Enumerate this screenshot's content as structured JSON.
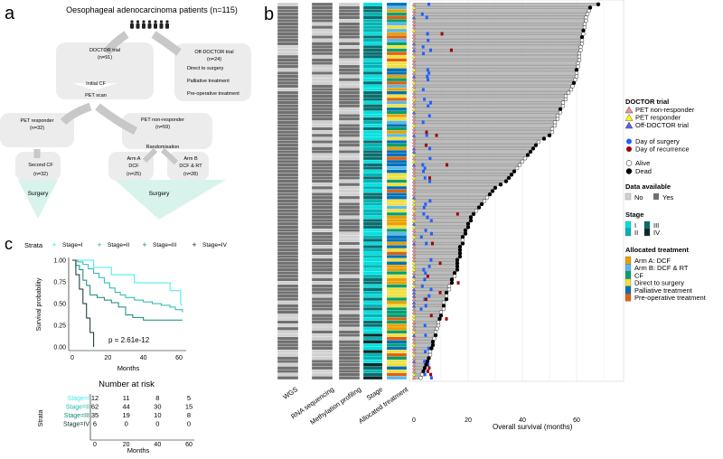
{
  "panel_labels": {
    "a": "a",
    "b": "b",
    "c": "c"
  },
  "flow": {
    "title": "Oesophageal adenocarcinoma patients (n=115)",
    "doctor": {
      "title": "DOCTOR trial",
      "n": "(n=91)",
      "step1": "Initial CF",
      "step2": "PET scan"
    },
    "off_doctor": {
      "title": "Off-DOCTOR trial",
      "n": "(n=24)",
      "items": [
        "Direct to surgery",
        "Palliative treatment",
        "Pre-operative treatment"
      ]
    },
    "pet_responder": {
      "title": "PET responder",
      "n": "(n=32)"
    },
    "pet_nonresponder": {
      "title": "PET non-responder",
      "n": "(n=59)",
      "sub": "Randomisation"
    },
    "second_cf": {
      "title": "Second CF",
      "n": "(n=32)"
    },
    "arm_a": {
      "title": "Arm A",
      "sub": "DCF",
      "n": "(n=25)"
    },
    "arm_b": {
      "title": "Arm B",
      "sub": "DCF & RT",
      "n": "(n=28)"
    },
    "surgery": "Surgery"
  },
  "colors": {
    "stage": [
      "#00e0e0",
      "#00b4b4",
      "#0a6e6e",
      "#0a2a2a"
    ],
    "treatment": [
      "#e8a000",
      "#58b8ec",
      "#00a070",
      "#f0e040",
      "#0070b8",
      "#e06010"
    ],
    "avail_no": "#d0d0d0",
    "avail_yes": "#707070",
    "surgery": "#2060ff",
    "recurrence": "#a00000",
    "pet_nonresponder": "#f09090",
    "pet_responder": "#ffff00",
    "off_doctor": "#6060e0"
  },
  "chart_data": [
    {
      "type": "swimmer",
      "title": "",
      "xlabel": "Overall survival (months)",
      "xticks": [
        "0",
        "20",
        "40",
        "60"
      ],
      "xlim": [
        0,
        75
      ],
      "columns": [
        "WGS",
        "RNA sequencing",
        "Methylation profiling",
        "Stage",
        "Allocated treatment"
      ],
      "n_patients": 115,
      "overall_survival_months": [
        68,
        65,
        64.5,
        64,
        63.5,
        63.5,
        63,
        63,
        62.5,
        62.5,
        62,
        62,
        62,
        61.5,
        61.5,
        61,
        61,
        61,
        60.5,
        60.5,
        60,
        60,
        60,
        59.5,
        59,
        58.5,
        58,
        57,
        56,
        56,
        55,
        55,
        54,
        54,
        53,
        53,
        52,
        52,
        51,
        51,
        50,
        48,
        46,
        45,
        44,
        43,
        42,
        41,
        40,
        39,
        38,
        37,
        36,
        35,
        34,
        32,
        30,
        29,
        28,
        27,
        26,
        25,
        24,
        23,
        22,
        21,
        21,
        20,
        20,
        19,
        19,
        18,
        18,
        18,
        17,
        17,
        17,
        17,
        16,
        16,
        16,
        16,
        15,
        15,
        14,
        14,
        13,
        13,
        12,
        12,
        12,
        11,
        11,
        11,
        10,
        10,
        9.5,
        9,
        9,
        8.5,
        8,
        8,
        7.5,
        7,
        7,
        6.5,
        6,
        6,
        5.5,
        5,
        4.5,
        4,
        3.5,
        3,
        2.5
      ],
      "legend": {
        "doctor_title": "DOCTOR trial",
        "doctor_items": [
          "PET non-responder",
          "PET responder",
          "Off-DOCTOR trial"
        ],
        "events": [
          "Day of surgery",
          "Day of recurrence"
        ],
        "status": [
          "Alive",
          "Dead"
        ],
        "avail_title": "Data available",
        "avail_items": [
          "No",
          "Yes"
        ],
        "stage_title": "Stage",
        "stage_items": [
          "I",
          "II",
          "III",
          "IV"
        ],
        "treat_title": "Allocated treatment",
        "treat_items": [
          "Arm A: DCF",
          "Arm B: DCF & RT",
          "CF",
          "Direct to surgery",
          "Palliative treatment",
          "Pre-operative treatment"
        ]
      }
    },
    {
      "type": "line",
      "title": "",
      "legend_title": "Strata",
      "xlabel": "Months",
      "ylabel": "Survival probability",
      "xlim": [
        0,
        62
      ],
      "ylim": [
        0,
        1
      ],
      "xticks": [
        "0",
        "20",
        "40",
        "60"
      ],
      "yticks": [
        "0.00",
        "0.25",
        "0.50",
        "0.75",
        "1.00"
      ],
      "annotation": "p = 2.61e-12",
      "series": [
        {
          "name": "Stage=I",
          "color": "#40e8e8",
          "x": [
            0,
            12,
            22,
            35,
            55,
            61,
            62
          ],
          "y": [
            1,
            0.917,
            0.833,
            0.74,
            0.648,
            0.49,
            0.49
          ]
        },
        {
          "name": "Stage=II",
          "color": "#20b8b0",
          "x": [
            0,
            3,
            6,
            9,
            12,
            15,
            18,
            21,
            24,
            27,
            30,
            35,
            40,
            45,
            50,
            55,
            58,
            62
          ],
          "y": [
            1,
            0.98,
            0.95,
            0.9,
            0.85,
            0.8,
            0.74,
            0.68,
            0.63,
            0.6,
            0.57,
            0.54,
            0.52,
            0.5,
            0.48,
            0.46,
            0.43,
            0.4
          ]
        },
        {
          "name": "Stage=III",
          "color": "#108878",
          "x": [
            0,
            2,
            4,
            6,
            8,
            10,
            14,
            18,
            22,
            26,
            30,
            34,
            40,
            50,
            62
          ],
          "y": [
            1,
            0.94,
            0.89,
            0.77,
            0.71,
            0.6,
            0.57,
            0.54,
            0.51,
            0.46,
            0.37,
            0.34,
            0.31,
            0.31,
            0.31
          ]
        },
        {
          "name": "Stage=IV",
          "color": "#0a3030",
          "x": [
            0,
            2,
            4,
            6,
            8,
            10,
            12
          ],
          "y": [
            1,
            0.833,
            0.667,
            0.5,
            0.333,
            0.167,
            0
          ]
        }
      ],
      "risk_table": {
        "title": "Number at risk",
        "ylabel": "Strata",
        "xlabel": "Months",
        "times": [
          "0",
          "20",
          "40",
          "60"
        ],
        "rows": [
          {
            "label": "Stage=I",
            "values": [
              "12",
              "11",
              "8",
              "5"
            ]
          },
          {
            "label": "Stage=II",
            "values": [
              "62",
              "44",
              "30",
              "15"
            ]
          },
          {
            "label": "Stage=III",
            "values": [
              "35",
              "19",
              "10",
              "8"
            ]
          },
          {
            "label": "Stage=IV",
            "values": [
              "6",
              "0",
              "0",
              "0"
            ]
          }
        ]
      }
    }
  ]
}
